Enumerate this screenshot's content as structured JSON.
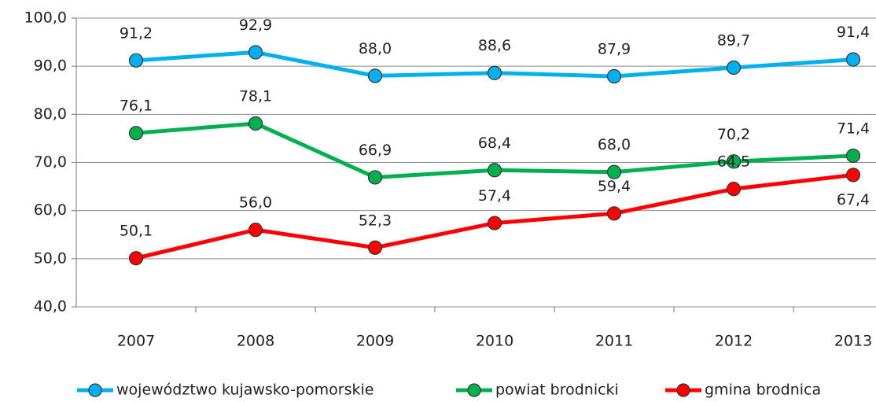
{
  "chart_data": {
    "type": "line",
    "categories": [
      "2007",
      "2008",
      "2009",
      "2010",
      "2011",
      "2012",
      "2013"
    ],
    "series": [
      {
        "name": "województwo kujawsko-pomorskie",
        "color": "#00b0f0",
        "values": [
          91.2,
          92.9,
          88.0,
          88.6,
          87.9,
          89.7,
          91.4
        ],
        "value_labels": [
          "91,2",
          "92,9",
          "88,0",
          "88,6",
          "87,9",
          "89,7",
          "91,4"
        ]
      },
      {
        "name": "powiat brodnicki",
        "color": "#00b050",
        "values": [
          76.1,
          78.1,
          66.9,
          68.4,
          68.0,
          70.2,
          71.4
        ],
        "value_labels": [
          "76,1",
          "78,1",
          "66,9",
          "68,4",
          "68,0",
          "70,2",
          "71,4"
        ]
      },
      {
        "name": "gmina brodnica",
        "color": "#ff0000",
        "values": [
          50.1,
          56.0,
          52.3,
          57.4,
          59.4,
          64.5,
          67.4
        ],
        "value_labels": [
          "50,1",
          "56,0",
          "52,3",
          "57,4",
          "59,4",
          "64,5",
          "67,4"
        ]
      }
    ],
    "ylim": [
      40,
      100
    ],
    "yticks": [
      {
        "value": 40,
        "label": "40,0"
      },
      {
        "value": 50,
        "label": "50,0"
      },
      {
        "value": 60,
        "label": "60,0"
      },
      {
        "value": 70,
        "label": "70,0"
      },
      {
        "value": 80,
        "label": "80,0"
      },
      {
        "value": 90,
        "label": "90,0"
      },
      {
        "value": 100,
        "label": "100,0"
      }
    ],
    "grid": true,
    "legend": "bottom"
  }
}
